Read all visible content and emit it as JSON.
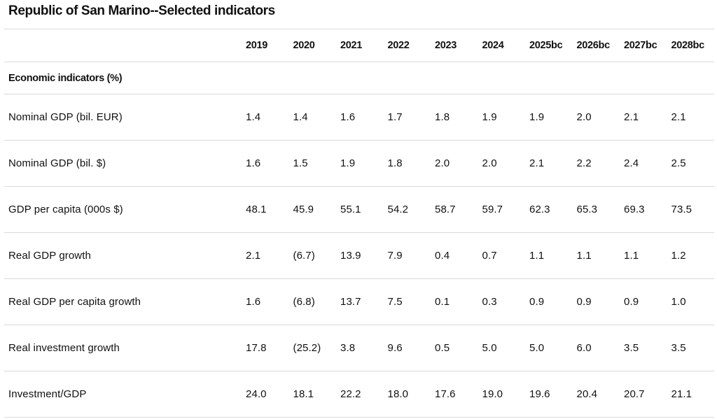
{
  "title": "Republic of San Marino--Selected indicators",
  "table": {
    "columns": [
      "2019",
      "2020",
      "2021",
      "2022",
      "2023",
      "2024",
      "2025bc",
      "2026bc",
      "2027bc",
      "2028bc"
    ],
    "section_label": "Economic indicators (%)",
    "rows": [
      {
        "label": "Nominal GDP (bil. EUR)",
        "values": [
          "1.4",
          "1.4",
          "1.6",
          "1.7",
          "1.8",
          "1.9",
          "1.9",
          "2.0",
          "2.1",
          "2.1"
        ]
      },
      {
        "label": "Nominal GDP (bil. $)",
        "values": [
          "1.6",
          "1.5",
          "1.9",
          "1.8",
          "2.0",
          "2.0",
          "2.1",
          "2.2",
          "2.4",
          "2.5"
        ]
      },
      {
        "label": "GDP per capita (000s $)",
        "values": [
          "48.1",
          "45.9",
          "55.1",
          "54.2",
          "58.7",
          "59.7",
          "62.3",
          "65.3",
          "69.3",
          "73.5"
        ]
      },
      {
        "label": "Real GDP growth",
        "values": [
          "2.1",
          "(6.7)",
          "13.9",
          "7.9",
          "0.4",
          "0.7",
          "1.1",
          "1.1",
          "1.1",
          "1.2"
        ]
      },
      {
        "label": "Real GDP per capita growth",
        "values": [
          "1.6",
          "(6.8)",
          "13.7",
          "7.5",
          "0.1",
          "0.3",
          "0.9",
          "0.9",
          "0.9",
          "1.0"
        ]
      },
      {
        "label": "Real investment growth",
        "values": [
          "17.8",
          "(25.2)",
          "3.8",
          "9.6",
          "0.5",
          "5.0",
          "5.0",
          "6.0",
          "3.5",
          "3.5"
        ]
      },
      {
        "label": "Investment/GDP",
        "values": [
          "24.0",
          "18.1",
          "22.2",
          "18.0",
          "17.6",
          "19.0",
          "19.6",
          "20.4",
          "20.7",
          "21.1"
        ]
      }
    ]
  }
}
